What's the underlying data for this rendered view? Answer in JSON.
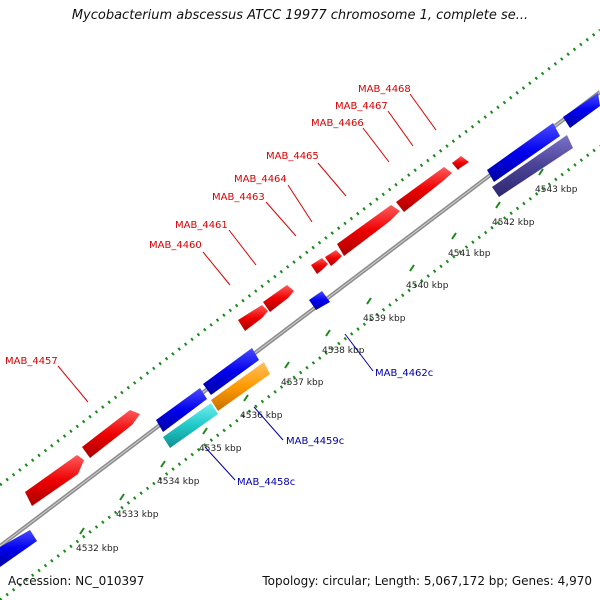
{
  "title": "Mycobacterium abscessus ATCC 19977 chromosome 1, complete se...",
  "footer": {
    "accession": "Accession: NC_010397",
    "summary": "Topology: circular; Length: 5,067,172 bp; Genes: 4,970"
  },
  "colors": {
    "forward_label": "#dd0000",
    "reverse_label": "#0000aa",
    "backbone": "#909090",
    "ticks": "#1a8a1a"
  },
  "ticks": [
    "4532 kbp",
    "4533 kbp",
    "4534 kbp",
    "4535 kbp",
    "4536 kbp",
    "4537 kbp",
    "4538 kbp",
    "4539 kbp",
    "4540 kbp",
    "4541 kbp",
    "4542 kbp",
    "4543 kbp"
  ],
  "forward_labels": [
    "MAB_4457",
    "MAB_4460",
    "MAB_4461",
    "MAB_4463",
    "MAB_4464",
    "MAB_4465",
    "MAB_4466",
    "MAB_4467",
    "MAB_4468"
  ],
  "reverse_labels": [
    "MAB_4458c",
    "MAB_4459c",
    "MAB_4462c"
  ]
}
